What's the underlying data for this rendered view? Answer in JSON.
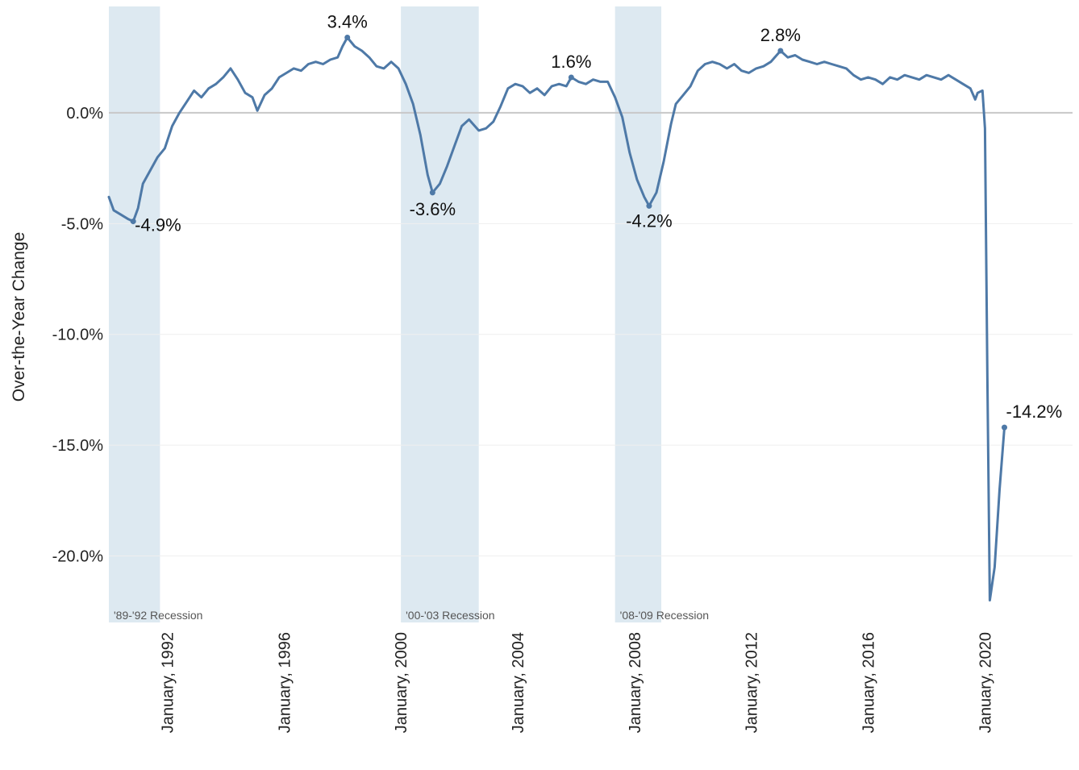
{
  "chart_data": {
    "type": "line",
    "ylabel": "Over-the-Year Change",
    "xlabel": "",
    "ylim": [
      -23.0,
      4.8
    ],
    "xlim": [
      "1990-01",
      "2023-01"
    ],
    "grid": true,
    "y_ticks": [
      {
        "value": 0,
        "label": "0.0%"
      },
      {
        "value": -5,
        "label": "-5.0%"
      },
      {
        "value": -10,
        "label": "-10.0%"
      },
      {
        "value": -15,
        "label": "-15.0%"
      },
      {
        "value": -20,
        "label": "-20.0%"
      }
    ],
    "x_ticks": [
      {
        "date": "1992-01",
        "label": "January, 1992"
      },
      {
        "date": "1996-01",
        "label": "January, 1996"
      },
      {
        "date": "2000-01",
        "label": "January, 2000"
      },
      {
        "date": "2004-01",
        "label": "January, 2004"
      },
      {
        "date": "2008-01",
        "label": "January, 2008"
      },
      {
        "date": "2012-01",
        "label": "January, 2012"
      },
      {
        "date": "2016-01",
        "label": "January, 2016"
      },
      {
        "date": "2020-01",
        "label": "January, 2020"
      }
    ],
    "recessions": [
      {
        "start": "1990-01",
        "end": "1991-10",
        "label": "'89-'92 Recession"
      },
      {
        "start": "2000-01",
        "end": "2002-09",
        "label": "'00-'03 Recession"
      },
      {
        "start": "2007-05",
        "end": "2008-12",
        "label": "'08-'09 Recession"
      }
    ],
    "annotations": [
      {
        "date": "1990-11",
        "value": -4.9,
        "label": "-4.9%"
      },
      {
        "date": "1998-03",
        "value": 3.4,
        "label": "3.4%"
      },
      {
        "date": "2001-02",
        "value": -3.6,
        "label": "-3.6%"
      },
      {
        "date": "2005-11",
        "value": 1.6,
        "label": "1.6%"
      },
      {
        "date": "2008-07",
        "value": -4.2,
        "label": "-4.2%"
      },
      {
        "date": "2013-01",
        "value": 2.8,
        "label": "2.8%"
      },
      {
        "date": "2020-09",
        "value": -14.2,
        "label": "-14.2%"
      }
    ],
    "series": [
      {
        "values": [
          [
            "1990-01",
            -3.8
          ],
          [
            "1990-03",
            -4.4
          ],
          [
            "1990-06",
            -4.6
          ],
          [
            "1990-09",
            -4.8
          ],
          [
            "1990-11",
            -4.9
          ],
          [
            "1991-01",
            -4.3
          ],
          [
            "1991-03",
            -3.2
          ],
          [
            "1991-06",
            -2.6
          ],
          [
            "1991-09",
            -2.0
          ],
          [
            "1991-12",
            -1.6
          ],
          [
            "1992-03",
            -0.6
          ],
          [
            "1992-06",
            0.0
          ],
          [
            "1992-09",
            0.5
          ],
          [
            "1992-12",
            1.0
          ],
          [
            "1993-03",
            0.7
          ],
          [
            "1993-06",
            1.1
          ],
          [
            "1993-09",
            1.3
          ],
          [
            "1993-12",
            1.6
          ],
          [
            "1994-03",
            2.0
          ],
          [
            "1994-06",
            1.5
          ],
          [
            "1994-09",
            0.9
          ],
          [
            "1994-12",
            0.7
          ],
          [
            "1995-02",
            0.1
          ],
          [
            "1995-05",
            0.8
          ],
          [
            "1995-08",
            1.1
          ],
          [
            "1995-11",
            1.6
          ],
          [
            "1996-02",
            1.8
          ],
          [
            "1996-05",
            2.0
          ],
          [
            "1996-08",
            1.9
          ],
          [
            "1996-11",
            2.2
          ],
          [
            "1997-02",
            2.3
          ],
          [
            "1997-05",
            2.2
          ],
          [
            "1997-08",
            2.4
          ],
          [
            "1997-11",
            2.5
          ],
          [
            "1998-01",
            3.0
          ],
          [
            "1998-03",
            3.4
          ],
          [
            "1998-06",
            3.0
          ],
          [
            "1998-09",
            2.8
          ],
          [
            "1998-12",
            2.5
          ],
          [
            "1999-03",
            2.1
          ],
          [
            "1999-06",
            2.0
          ],
          [
            "1999-09",
            2.3
          ],
          [
            "1999-12",
            2.0
          ],
          [
            "2000-03",
            1.3
          ],
          [
            "2000-06",
            0.4
          ],
          [
            "2000-09",
            -1.0
          ],
          [
            "2000-12",
            -2.8
          ],
          [
            "2001-02",
            -3.6
          ],
          [
            "2001-05",
            -3.2
          ],
          [
            "2001-08",
            -2.4
          ],
          [
            "2001-11",
            -1.5
          ],
          [
            "2002-02",
            -0.6
          ],
          [
            "2002-05",
            -0.3
          ],
          [
            "2002-09",
            -0.8
          ],
          [
            "2002-12",
            -0.7
          ],
          [
            "2003-03",
            -0.4
          ],
          [
            "2003-06",
            0.3
          ],
          [
            "2003-09",
            1.1
          ],
          [
            "2003-12",
            1.3
          ],
          [
            "2004-03",
            1.2
          ],
          [
            "2004-06",
            0.9
          ],
          [
            "2004-09",
            1.1
          ],
          [
            "2004-12",
            0.8
          ],
          [
            "2005-03",
            1.2
          ],
          [
            "2005-06",
            1.3
          ],
          [
            "2005-09",
            1.2
          ],
          [
            "2005-11",
            1.6
          ],
          [
            "2006-02",
            1.4
          ],
          [
            "2006-05",
            1.3
          ],
          [
            "2006-08",
            1.5
          ],
          [
            "2006-11",
            1.4
          ],
          [
            "2007-02",
            1.4
          ],
          [
            "2007-05",
            0.7
          ],
          [
            "2007-08",
            -0.2
          ],
          [
            "2007-11",
            -1.8
          ],
          [
            "2008-02",
            -3.0
          ],
          [
            "2008-05",
            -3.8
          ],
          [
            "2008-07",
            -4.2
          ],
          [
            "2008-10",
            -3.6
          ],
          [
            "2009-01",
            -2.2
          ],
          [
            "2009-04",
            -0.5
          ],
          [
            "2009-06",
            0.4
          ],
          [
            "2009-09",
            0.8
          ],
          [
            "2009-12",
            1.2
          ],
          [
            "2010-03",
            1.9
          ],
          [
            "2010-06",
            2.2
          ],
          [
            "2010-09",
            2.3
          ],
          [
            "2010-12",
            2.2
          ],
          [
            "2011-03",
            2.0
          ],
          [
            "2011-06",
            2.2
          ],
          [
            "2011-09",
            1.9
          ],
          [
            "2011-12",
            1.8
          ],
          [
            "2012-03",
            2.0
          ],
          [
            "2012-06",
            2.1
          ],
          [
            "2012-09",
            2.3
          ],
          [
            "2013-01",
            2.8
          ],
          [
            "2013-04",
            2.5
          ],
          [
            "2013-07",
            2.6
          ],
          [
            "2013-10",
            2.4
          ],
          [
            "2014-01",
            2.3
          ],
          [
            "2014-04",
            2.2
          ],
          [
            "2014-07",
            2.3
          ],
          [
            "2014-10",
            2.2
          ],
          [
            "2015-01",
            2.1
          ],
          [
            "2015-04",
            2.0
          ],
          [
            "2015-07",
            1.7
          ],
          [
            "2015-10",
            1.5
          ],
          [
            "2016-01",
            1.6
          ],
          [
            "2016-04",
            1.5
          ],
          [
            "2016-07",
            1.3
          ],
          [
            "2016-10",
            1.6
          ],
          [
            "2017-01",
            1.5
          ],
          [
            "2017-04",
            1.7
          ],
          [
            "2017-07",
            1.6
          ],
          [
            "2017-10",
            1.5
          ],
          [
            "2018-01",
            1.7
          ],
          [
            "2018-04",
            1.6
          ],
          [
            "2018-07",
            1.5
          ],
          [
            "2018-10",
            1.7
          ],
          [
            "2019-01",
            1.5
          ],
          [
            "2019-04",
            1.3
          ],
          [
            "2019-07",
            1.1
          ],
          [
            "2019-09",
            0.6
          ],
          [
            "2019-10",
            0.9
          ],
          [
            "2019-12",
            1.0
          ],
          [
            "2020-01",
            -0.7
          ],
          [
            "2020-02",
            -12.0
          ],
          [
            "2020-03",
            -22.0
          ],
          [
            "2020-05",
            -20.5
          ],
          [
            "2020-07",
            -17.0
          ],
          [
            "2020-09",
            -14.2
          ]
        ]
      }
    ]
  }
}
